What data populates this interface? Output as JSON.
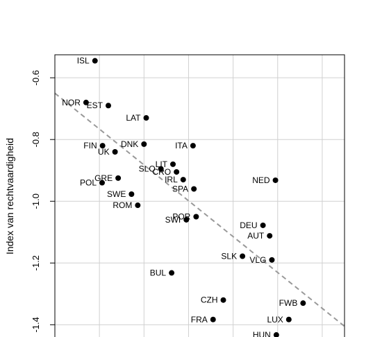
{
  "chart_data": {
    "type": "scatter",
    "title": "",
    "xlabel": "",
    "ylabel": "Index van rechtvaardigheid",
    "xlim": [
      0,
      6.5
    ],
    "ylim": [
      -1.4397,
      -0.5255
    ],
    "yticks": [
      -0.6,
      -0.8,
      -1.0,
      -1.2,
      -1.4
    ],
    "ytick_labels": [
      "-0.6",
      "-0.8",
      "-1.0",
      "-1.2",
      "-1.4"
    ],
    "grid": true,
    "colors": {
      "points": "#000000",
      "grid": "#d0d0d0",
      "trend": "#999999"
    },
    "trend_line": {
      "style": "dashed",
      "x": [
        0,
        6.5
      ],
      "y": [
        -0.65,
        -1.405
      ]
    },
    "points": [
      {
        "label": "ISL",
        "x": 0.9,
        "y": -0.545,
        "anchor": "left"
      },
      {
        "label": "NOR",
        "x": 0.7,
        "y": -0.68,
        "anchor": "left"
      },
      {
        "label": "EST",
        "x": 1.2,
        "y": -0.69,
        "anchor": "left"
      },
      {
        "label": "LAT",
        "x": 2.05,
        "y": -0.73,
        "anchor": "left"
      },
      {
        "label": "FIN",
        "x": 1.07,
        "y": -0.82,
        "anchor": "left"
      },
      {
        "label": "DNK",
        "x": 2.0,
        "y": -0.815,
        "anchor": "left"
      },
      {
        "label": "ITA",
        "x": 3.1,
        "y": -0.82,
        "anchor": "left"
      },
      {
        "label": "UK",
        "x": 1.35,
        "y": -0.84,
        "anchor": "left"
      },
      {
        "label": "LIT",
        "x": 2.65,
        "y": -0.88,
        "anchor": "left"
      },
      {
        "label": "SLO",
        "x": 2.38,
        "y": -0.895,
        "anchor": "left"
      },
      {
        "label": "CRO",
        "x": 2.73,
        "y": -0.905,
        "anchor": "left"
      },
      {
        "label": "GRE",
        "x": 1.42,
        "y": -0.925,
        "anchor": "left"
      },
      {
        "label": "IRL",
        "x": 2.88,
        "y": -0.93,
        "anchor": "left"
      },
      {
        "label": "NED",
        "x": 4.95,
        "y": -0.932,
        "anchor": "left"
      },
      {
        "label": "POL",
        "x": 1.06,
        "y": -0.94,
        "anchor": "left"
      },
      {
        "label": "SPA",
        "x": 3.12,
        "y": -0.96,
        "anchor": "left"
      },
      {
        "label": "SWE",
        "x": 1.72,
        "y": -0.977,
        "anchor": "left"
      },
      {
        "label": "ROM",
        "x": 1.86,
        "y": -1.013,
        "anchor": "left"
      },
      {
        "label": "POR",
        "x": 3.17,
        "y": -1.05,
        "anchor": "left"
      },
      {
        "label": "SWI",
        "x": 2.95,
        "y": -1.06,
        "anchor": "left"
      },
      {
        "label": "DEU",
        "x": 4.67,
        "y": -1.078,
        "anchor": "left"
      },
      {
        "label": "AUT",
        "x": 4.82,
        "y": -1.112,
        "anchor": "left"
      },
      {
        "label": "SLK",
        "x": 4.21,
        "y": -1.178,
        "anchor": "left"
      },
      {
        "label": "VLG",
        "x": 4.87,
        "y": -1.19,
        "anchor": "left"
      },
      {
        "label": "BUL",
        "x": 2.62,
        "y": -1.232,
        "anchor": "left"
      },
      {
        "label": "CZH",
        "x": 3.78,
        "y": -1.32,
        "anchor": "left"
      },
      {
        "label": "FWB",
        "x": 5.57,
        "y": -1.33,
        "anchor": "left"
      },
      {
        "label": "FRA",
        "x": 3.55,
        "y": -1.383,
        "anchor": "left"
      },
      {
        "label": "LUX",
        "x": 5.25,
        "y": -1.383,
        "anchor": "left"
      },
      {
        "label": "HUN",
        "x": 4.97,
        "y": -1.433,
        "anchor": "left"
      }
    ]
  }
}
